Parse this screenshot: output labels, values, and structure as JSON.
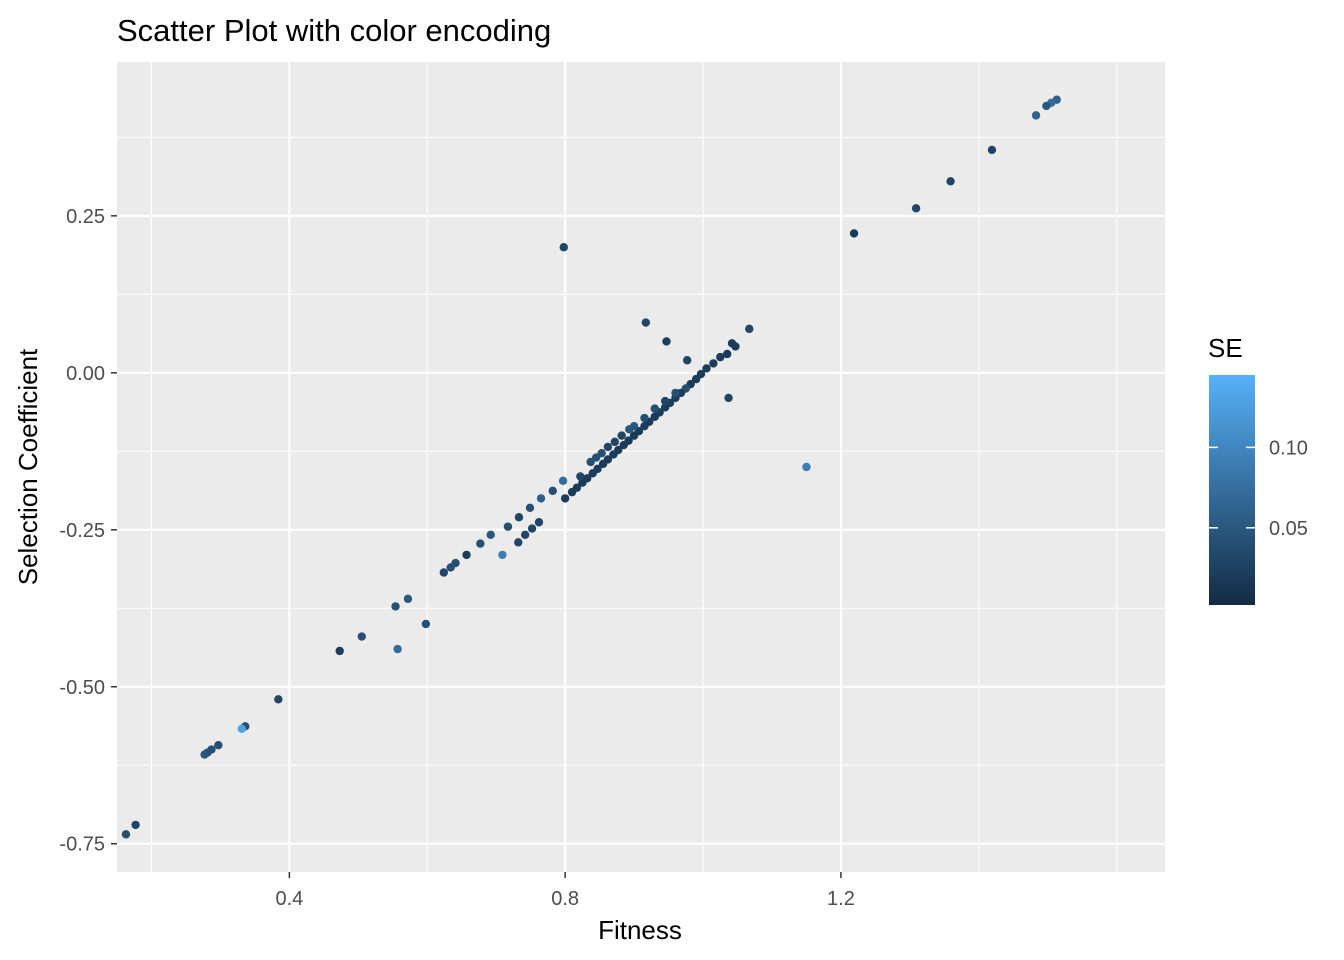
{
  "chart_data": {
    "type": "scatter",
    "title": "Scatter Plot with color encoding",
    "xlabel": "Fitness",
    "ylabel": "Selection Coefficient",
    "xlim": [
      0.15,
      1.67
    ],
    "ylim": [
      -0.795,
      0.495
    ],
    "x_ticks": [
      {
        "value": 0.4,
        "label": "0.4"
      },
      {
        "value": 0.8,
        "label": "0.8"
      },
      {
        "value": 1.2,
        "label": "1.2"
      }
    ],
    "x_minor": [
      0.2,
      0.6,
      1.0,
      1.4,
      1.6
    ],
    "y_ticks": [
      {
        "value": 0.25,
        "label": "0.25"
      },
      {
        "value": 0.0,
        "label": "0.00"
      },
      {
        "value": -0.25,
        "label": "-0.25"
      },
      {
        "value": -0.5,
        "label": "-0.50"
      },
      {
        "value": -0.75,
        "label": "-0.75"
      }
    ],
    "y_minor": [
      0.375,
      0.125,
      -0.125,
      -0.375,
      -0.625
    ],
    "grid": true,
    "panel_background": "#ebebeb",
    "color_scale": {
      "name": "SE",
      "low": "#132b43",
      "high": "#56b1f7",
      "range": [
        0.002,
        0.145
      ],
      "breaks": [
        {
          "value": 0.05,
          "label": "0.05"
        },
        {
          "value": 0.1,
          "label": "0.10"
        }
      ],
      "legend_position": "right"
    },
    "points": [
      {
        "x": 1.513,
        "y": 0.435,
        "se": 0.06
      },
      {
        "x": 1.505,
        "y": 0.43,
        "se": 0.07
      },
      {
        "x": 1.498,
        "y": 0.425,
        "se": 0.05
      },
      {
        "x": 1.483,
        "y": 0.41,
        "se": 0.06
      },
      {
        "x": 1.419,
        "y": 0.355,
        "se": 0.03
      },
      {
        "x": 1.359,
        "y": 0.305,
        "se": 0.03
      },
      {
        "x": 1.309,
        "y": 0.262,
        "se": 0.03
      },
      {
        "x": 1.219,
        "y": 0.222,
        "se": 0.02
      },
      {
        "x": 0.798,
        "y": 0.2,
        "se": 0.03
      },
      {
        "x": 0.917,
        "y": 0.08,
        "se": 0.03
      },
      {
        "x": 0.947,
        "y": 0.05,
        "se": 0.02
      },
      {
        "x": 1.067,
        "y": 0.07,
        "se": 0.03
      },
      {
        "x": 1.042,
        "y": 0.047,
        "se": 0.02
      },
      {
        "x": 1.047,
        "y": 0.042,
        "se": 0.02
      },
      {
        "x": 0.977,
        "y": 0.02,
        "se": 0.03
      },
      {
        "x": 1.037,
        "y": -0.04,
        "se": 0.03
      },
      {
        "x": 1.15,
        "y": -0.15,
        "se": 0.09
      },
      {
        "x": 1.035,
        "y": 0.03,
        "se": 0.02
      },
      {
        "x": 1.025,
        "y": 0.025,
        "se": 0.02
      },
      {
        "x": 1.015,
        "y": 0.015,
        "se": 0.02
      },
      {
        "x": 1.005,
        "y": 0.007,
        "se": 0.02
      },
      {
        "x": 0.997,
        "y": -0.002,
        "se": 0.02
      },
      {
        "x": 0.99,
        "y": -0.01,
        "se": 0.02
      },
      {
        "x": 0.982,
        "y": -0.018,
        "se": 0.02
      },
      {
        "x": 0.975,
        "y": -0.025,
        "se": 0.04
      },
      {
        "x": 0.968,
        "y": -0.032,
        "se": 0.02
      },
      {
        "x": 0.96,
        "y": -0.04,
        "se": 0.02
      },
      {
        "x": 0.952,
        "y": -0.048,
        "se": 0.02
      },
      {
        "x": 0.945,
        "y": -0.055,
        "se": 0.02
      },
      {
        "x": 0.937,
        "y": -0.063,
        "se": 0.02
      },
      {
        "x": 0.93,
        "y": -0.07,
        "se": 0.02
      },
      {
        "x": 0.922,
        "y": -0.078,
        "se": 0.02
      },
      {
        "x": 0.915,
        "y": -0.085,
        "se": 0.02
      },
      {
        "x": 0.907,
        "y": -0.093,
        "se": 0.02
      },
      {
        "x": 0.9,
        "y": -0.1,
        "se": 0.02
      },
      {
        "x": 0.892,
        "y": -0.108,
        "se": 0.02
      },
      {
        "x": 0.885,
        "y": -0.115,
        "se": 0.02
      },
      {
        "x": 0.877,
        "y": -0.123,
        "se": 0.02
      },
      {
        "x": 0.87,
        "y": -0.13,
        "se": 0.02
      },
      {
        "x": 0.862,
        "y": -0.138,
        "se": 0.02
      },
      {
        "x": 0.855,
        "y": -0.145,
        "se": 0.02
      },
      {
        "x": 0.847,
        "y": -0.153,
        "se": 0.02
      },
      {
        "x": 0.84,
        "y": -0.16,
        "se": 0.02
      },
      {
        "x": 0.832,
        "y": -0.168,
        "se": 0.02
      },
      {
        "x": 0.825,
        "y": -0.175,
        "se": 0.02
      },
      {
        "x": 0.817,
        "y": -0.183,
        "se": 0.02
      },
      {
        "x": 0.81,
        "y": -0.19,
        "se": 0.02
      },
      {
        "x": 0.8,
        "y": -0.2,
        "se": 0.02
      },
      {
        "x": 0.96,
        "y": -0.032,
        "se": 0.04
      },
      {
        "x": 0.945,
        "y": -0.045,
        "se": 0.03
      },
      {
        "x": 0.93,
        "y": -0.057,
        "se": 0.04
      },
      {
        "x": 0.915,
        "y": -0.072,
        "se": 0.04
      },
      {
        "x": 0.9,
        "y": -0.085,
        "se": 0.05
      },
      {
        "x": 0.893,
        "y": -0.09,
        "se": 0.05
      },
      {
        "x": 0.882,
        "y": -0.1,
        "se": 0.03
      },
      {
        "x": 0.872,
        "y": -0.11,
        "se": 0.03
      },
      {
        "x": 0.862,
        "y": -0.118,
        "se": 0.03
      },
      {
        "x": 0.853,
        "y": -0.128,
        "se": 0.04
      },
      {
        "x": 0.845,
        "y": -0.135,
        "se": 0.04
      },
      {
        "x": 0.837,
        "y": -0.142,
        "se": 0.04
      },
      {
        "x": 0.822,
        "y": -0.165,
        "se": 0.03
      },
      {
        "x": 0.797,
        "y": -0.172,
        "se": 0.07
      },
      {
        "x": 0.782,
        "y": -0.188,
        "se": 0.04
      },
      {
        "x": 0.765,
        "y": -0.2,
        "se": 0.06
      },
      {
        "x": 0.749,
        "y": -0.215,
        "se": 0.04
      },
      {
        "x": 0.733,
        "y": -0.23,
        "se": 0.03
      },
      {
        "x": 0.717,
        "y": -0.245,
        "se": 0.04
      },
      {
        "x": 0.762,
        "y": -0.238,
        "se": 0.03
      },
      {
        "x": 0.752,
        "y": -0.248,
        "se": 0.03
      },
      {
        "x": 0.742,
        "y": -0.258,
        "se": 0.03
      },
      {
        "x": 0.732,
        "y": -0.27,
        "se": 0.03
      },
      {
        "x": 0.709,
        "y": -0.29,
        "se": 0.09
      },
      {
        "x": 0.692,
        "y": -0.258,
        "se": 0.05
      },
      {
        "x": 0.677,
        "y": -0.272,
        "se": 0.04
      },
      {
        "x": 0.657,
        "y": -0.29,
        "se": 0.02
      },
      {
        "x": 0.641,
        "y": -0.303,
        "se": 0.04
      },
      {
        "x": 0.634,
        "y": -0.31,
        "se": 0.04
      },
      {
        "x": 0.624,
        "y": -0.318,
        "se": 0.03
      },
      {
        "x": 0.598,
        "y": -0.4,
        "se": 0.04
      },
      {
        "x": 0.572,
        "y": -0.36,
        "se": 0.05
      },
      {
        "x": 0.554,
        "y": -0.372,
        "se": 0.04
      },
      {
        "x": 0.557,
        "y": -0.44,
        "se": 0.07
      },
      {
        "x": 0.505,
        "y": -0.42,
        "se": 0.04
      },
      {
        "x": 0.473,
        "y": -0.443,
        "se": 0.02
      },
      {
        "x": 0.384,
        "y": -0.52,
        "se": 0.03
      },
      {
        "x": 0.336,
        "y": -0.563,
        "se": 0.04
      },
      {
        "x": 0.331,
        "y": -0.567,
        "se": 0.13
      },
      {
        "x": 0.297,
        "y": -0.593,
        "se": 0.04
      },
      {
        "x": 0.287,
        "y": -0.6,
        "se": 0.04
      },
      {
        "x": 0.281,
        "y": -0.605,
        "se": 0.04
      },
      {
        "x": 0.277,
        "y": -0.608,
        "se": 0.05
      },
      {
        "x": 0.177,
        "y": -0.72,
        "se": 0.03
      },
      {
        "x": 0.163,
        "y": -0.735,
        "se": 0.04
      }
    ]
  }
}
